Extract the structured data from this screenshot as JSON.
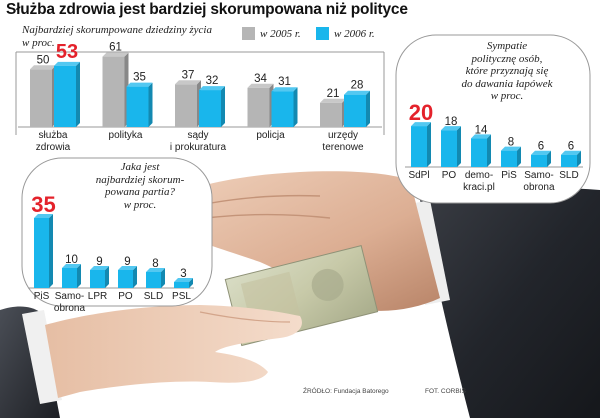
{
  "headline": "Służba zdrowia jest bardziej skorumpowana niż polityce",
  "chart1_subtitle_line1": "Najbardziej skorumpowane dziedziny życia",
  "chart1_subtitle_line2": "w proc.",
  "legend_2005": "w 2005 r.",
  "legend_2006": "w 2006 r.",
  "chart2_caption_lines": [
    "Sympatie",
    "politycznę osób,",
    "które przyznają się",
    "do dawania łapówek",
    "w proc."
  ],
  "chart3_caption_lines": [
    "Jaka jest",
    "najbardziej skorum-",
    "powana partia?",
    "w proc."
  ],
  "source": "ŹRÓDŁO: Fundacja Batorego",
  "photo": "FOT. CORBIS",
  "banknote_text": "200",
  "colors": {
    "gray": "#b5b5b5",
    "blue": "#19b6ec",
    "red": "#e4222b",
    "line": "#999999"
  },
  "chart_data": [
    {
      "type": "bar",
      "categories": [
        [
          "służba",
          "zdrowia"
        ],
        [
          "polityka"
        ],
        [
          "sądy",
          "i prokuratura"
        ],
        [
          "policja"
        ],
        [
          "urzędy",
          "terenowe"
        ]
      ],
      "series": [
        {
          "name": "w 2005 r.",
          "values": [
            50,
            61,
            37,
            34,
            21
          ]
        },
        {
          "name": "w 2006 r.",
          "values": [
            53,
            35,
            32,
            31,
            28
          ]
        }
      ],
      "highlight": {
        "category": 0,
        "series": 1
      },
      "ylim": [
        0,
        65
      ]
    },
    {
      "type": "bar",
      "categories": [
        [
          "SdPl"
        ],
        [
          "PO"
        ],
        [
          "demo-",
          "kraci.pl"
        ],
        [
          "PiS"
        ],
        [
          "Samo-",
          "obrona"
        ],
        [
          "SLD"
        ]
      ],
      "values": [
        20,
        18,
        14,
        8,
        6,
        6
      ],
      "highlight_index": 0,
      "ylim": [
        0,
        22
      ]
    },
    {
      "type": "bar",
      "categories": [
        [
          "PiS"
        ],
        [
          "Samo-",
          "obrona"
        ],
        [
          "LPR"
        ],
        [
          "PO"
        ],
        [
          "SLD"
        ],
        [
          "PSL"
        ]
      ],
      "values": [
        35,
        10,
        9,
        9,
        8,
        3
      ],
      "highlight_index": 0,
      "ylim": [
        0,
        36
      ]
    }
  ]
}
